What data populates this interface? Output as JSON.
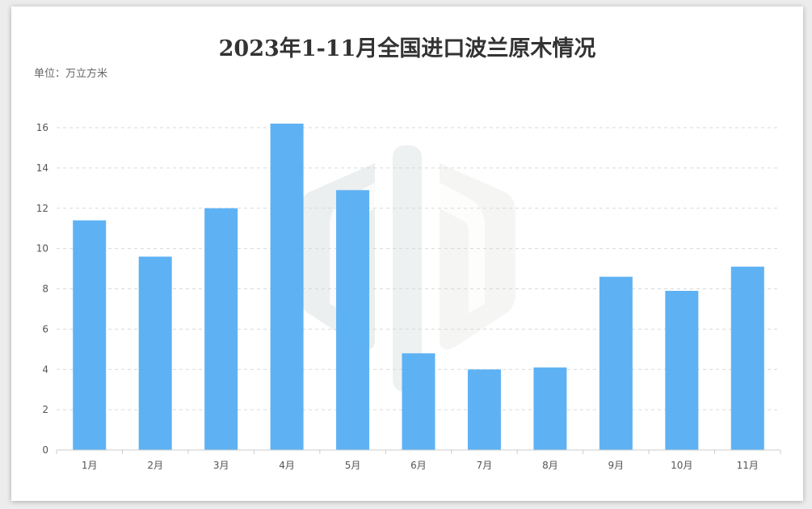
{
  "chart_data": {
    "type": "bar",
    "title": "2023年1-11月全国进口波兰原木情况",
    "unit": "单位：万立方米",
    "categories": [
      "1月",
      "2月",
      "3月",
      "4月",
      "5月",
      "6月",
      "7月",
      "8月",
      "9月",
      "10月",
      "11月"
    ],
    "values": [
      11.4,
      9.6,
      12.0,
      16.2,
      12.9,
      4.8,
      4.0,
      4.1,
      8.6,
      7.9,
      9.1
    ],
    "ylim": [
      0,
      16
    ],
    "yticks": [
      0,
      2,
      4,
      6,
      8,
      10,
      12,
      14,
      16
    ],
    "grid": true,
    "bar_color": "#55aef3"
  }
}
